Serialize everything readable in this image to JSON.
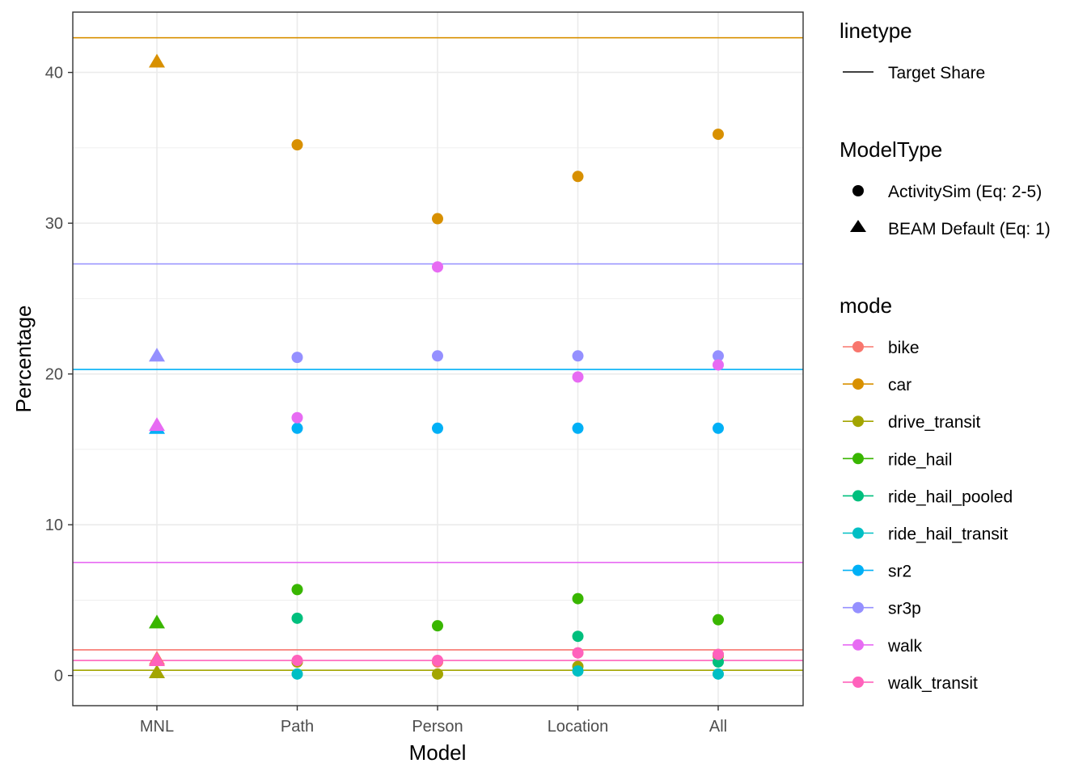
{
  "chart_data": {
    "type": "scatter",
    "xlabel": "Model",
    "ylabel": "Percentage",
    "categories": [
      "MNL",
      "Path",
      "Person",
      "Location",
      "All"
    ],
    "ylim": [
      -2,
      44
    ],
    "yticks": [
      0,
      10,
      20,
      30,
      40
    ],
    "grid": true,
    "legend_position": "right",
    "target_shares": [
      {
        "mode": "car",
        "value": 42.3
      },
      {
        "mode": "sr3p",
        "value": 27.3
      },
      {
        "mode": "sr2",
        "value": 20.3
      },
      {
        "mode": "walk",
        "value": 7.5
      },
      {
        "mode": "bike",
        "value": 1.7
      },
      {
        "mode": "walk_transit",
        "value": 1.0
      },
      {
        "mode": "drive_transit",
        "value": 0.35
      }
    ],
    "series": [
      {
        "mode": "bike",
        "color": "#F8766D",
        "values": [
          1.1,
          0.9,
          0.9,
          1.5,
          1.4
        ]
      },
      {
        "mode": "car",
        "color": "#D89000",
        "values": [
          40.7,
          35.2,
          30.3,
          33.1,
          35.9
        ]
      },
      {
        "mode": "drive_transit",
        "color": "#A3A500",
        "values": [
          0.2,
          0.9,
          0.1,
          0.6,
          1.3
        ]
      },
      {
        "mode": "ride_hail",
        "color": "#39B600",
        "values": [
          3.5,
          5.7,
          3.3,
          5.1,
          3.7
        ]
      },
      {
        "mode": "ride_hail_pooled",
        "color": "#00BF7D",
        "values": [
          null,
          3.8,
          null,
          2.6,
          0.9
        ]
      },
      {
        "mode": "ride_hail_transit",
        "color": "#00BFC4",
        "values": [
          null,
          0.1,
          null,
          0.3,
          0.1
        ]
      },
      {
        "mode": "sr2",
        "color": "#00B0F6",
        "values": [
          16.4,
          16.4,
          16.4,
          16.4,
          16.4
        ]
      },
      {
        "mode": "sr3p",
        "color": "#9590FF",
        "values": [
          21.2,
          21.1,
          21.2,
          21.2,
          21.2
        ]
      },
      {
        "mode": "walk",
        "color": "#E76BF3",
        "values": [
          16.6,
          17.1,
          27.1,
          19.8,
          20.6
        ]
      },
      {
        "mode": "walk_transit",
        "color": "#FF62BC",
        "values": [
          1.0,
          1.0,
          1.0,
          1.5,
          1.4
        ]
      }
    ],
    "model_type": [
      "BEAM Default (Eq: 1)",
      "ActivitySim (Eq: 2-5)",
      "ActivitySim (Eq: 2-5)",
      "ActivitySim (Eq: 2-5)",
      "ActivitySim (Eq: 2-5)"
    ],
    "legend": {
      "linetype_title": "linetype",
      "linetype_items": [
        "Target Share"
      ],
      "modeltype_title": "ModelType",
      "modeltype_items": [
        {
          "label": "ActivitySim (Eq: 2-5)",
          "shape": "circle"
        },
        {
          "label": "BEAM Default (Eq: 1)",
          "shape": "triangle"
        }
      ],
      "mode_title": "mode"
    }
  }
}
